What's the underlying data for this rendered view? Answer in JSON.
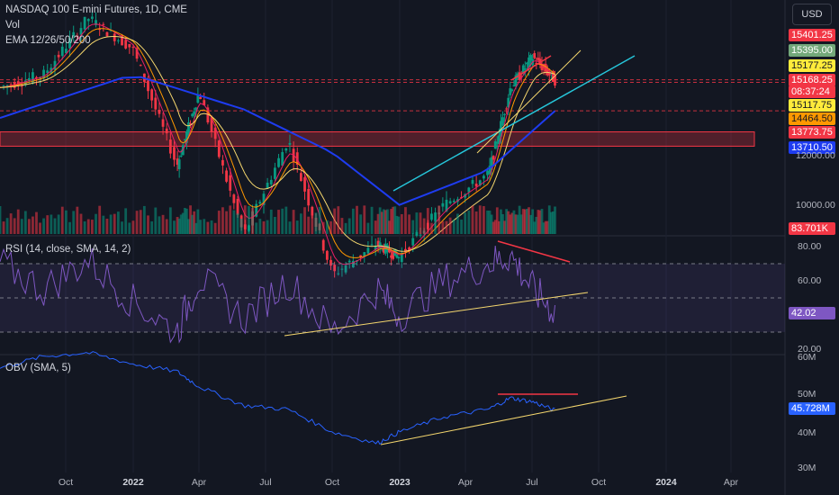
{
  "header": {
    "title": "NASDAQ 100 E-mini Futures, 1D, CME",
    "vol": "Vol",
    "ema": "EMA 12/26/50/200",
    "currency": "USD"
  },
  "price_tags": [
    {
      "text": "15401.25",
      "bg": "#f23645",
      "fg": "#ffffff"
    },
    {
      "text": "15395.00",
      "bg": "#73a87a",
      "fg": "#ffffff"
    },
    {
      "text": "15177.25",
      "bg": "#ffeb3b",
      "fg": "#131722"
    },
    {
      "text": "15168.25",
      "bg": "#f23645",
      "fg": "#ffffff"
    },
    {
      "text": "08:37:24",
      "bg": "#f23645",
      "fg": "#ffffff"
    },
    {
      "text": "15117.75",
      "bg": "#ffeb3b",
      "fg": "#131722"
    },
    {
      "text": "14464.50",
      "bg": "#ff9800",
      "fg": "#131722"
    },
    {
      "text": "13773.75",
      "bg": "#f23645",
      "fg": "#ffffff"
    },
    {
      "text": "13710.50",
      "bg": "#1e3cf0",
      "fg": "#ffffff"
    }
  ],
  "price_axis": [
    "12000.00",
    "10000.00"
  ],
  "volume_tag": {
    "text": "83.701K",
    "bg": "#f23645",
    "fg": "#ffffff"
  },
  "rsi": {
    "label": "RSI (14, close, SMA, 14, 2)",
    "axis": [
      "80.00",
      "60.00",
      "20.00"
    ],
    "tag": {
      "text": "42.02",
      "bg": "#7e57c2",
      "fg": "#ffffff"
    }
  },
  "obv": {
    "label": "OBV (SMA, 5)",
    "axis": [
      "60M",
      "50M",
      "40M",
      "30M"
    ],
    "tag": {
      "text": "45.728M",
      "bg": "#2962ff",
      "fg": "#ffffff"
    }
  },
  "x_axis": [
    {
      "label": "Oct",
      "bold": false
    },
    {
      "label": "2022",
      "bold": true
    },
    {
      "label": "Apr",
      "bold": false
    },
    {
      "label": "Jul",
      "bold": false
    },
    {
      "label": "Oct",
      "bold": false
    },
    {
      "label": "2023",
      "bold": true
    },
    {
      "label": "Apr",
      "bold": false
    },
    {
      "label": "Jul",
      "bold": false
    },
    {
      "label": "Oct",
      "bold": false
    },
    {
      "label": "2024",
      "bold": true
    },
    {
      "label": "Apr",
      "bold": false
    }
  ],
  "chart_data": {
    "type": "line",
    "title": "NASDAQ 100 E-mini Futures, 1D, CME",
    "price_series": {
      "name": "close",
      "x": [
        "2021-07",
        "2021-09",
        "2021-11",
        "2022-01",
        "2022-03",
        "2022-04",
        "2022-06",
        "2022-08",
        "2022-10",
        "2022-12",
        "2023-01",
        "2023-03",
        "2023-05",
        "2023-06",
        "2023-07",
        "2023-08"
      ],
      "values": [
        15000,
        15300,
        16600,
        15900,
        13200,
        14900,
        11600,
        13800,
        10700,
        11400,
        11100,
        12300,
        13000,
        15000,
        15700,
        15168
      ]
    },
    "ema200": {
      "x": [
        "2021-07",
        "2022-01",
        "2022-06",
        "2022-10",
        "2023-01",
        "2023-05",
        "2023-08"
      ],
      "values": [
        14300,
        15300,
        14500,
        13500,
        12300,
        13100,
        14460
      ]
    },
    "support_zone": [
      13650,
      13980
    ],
    "horizontal_levels": [
      15177.25,
      15117.75,
      14464.5
    ],
    "rsi_values": [
      70,
      55,
      72,
      48,
      30,
      62,
      38,
      60,
      30,
      55,
      40,
      60,
      70,
      75,
      55,
      42
    ],
    "rsi_bands": [
      70,
      30,
      50
    ],
    "obv_values_M": [
      57,
      60,
      61,
      58,
      56,
      52,
      47,
      46,
      40,
      37,
      40,
      44,
      46,
      49,
      48,
      45.7
    ]
  }
}
